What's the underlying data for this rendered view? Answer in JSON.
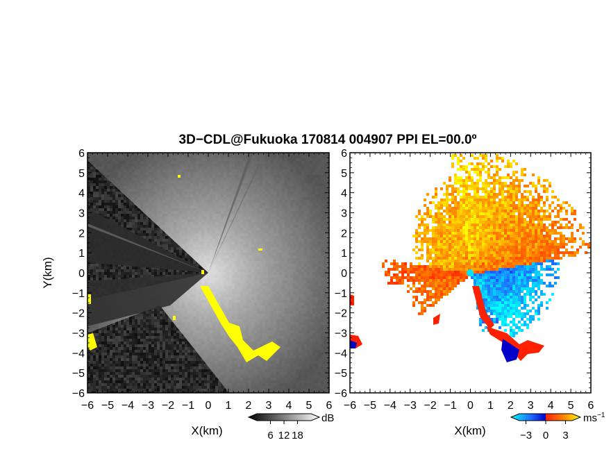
{
  "figure": {
    "title": "3D−CDL@Fukuoka 170814 004907 PPI EL=00.0º"
  },
  "chart_data": [
    {
      "type": "heatmap",
      "panel": "left",
      "field": "SNR (grayscale) with yellow flagged echoes",
      "xlabel": "X(km)",
      "ylabel": "Y(km)",
      "xlim": [
        -6,
        6
      ],
      "ylim": [
        -6,
        6
      ],
      "x_ticks": [
        "−6",
        "−5",
        "−4",
        "−3",
        "−2",
        "−1",
        "0",
        "1",
        "2",
        "3",
        "4",
        "5",
        "6"
      ],
      "y_ticks": [
        "−6",
        "−5",
        "−4",
        "−3",
        "−2",
        "−1",
        "0",
        "1",
        "2",
        "3",
        "4",
        "5",
        "6"
      ],
      "radar_center": [
        0,
        0
      ],
      "colorbar": {
        "unit": "dB",
        "ticks": [
          "6",
          "12",
          "18"
        ],
        "range": [
          0,
          24
        ],
        "colors": [
          "#000000",
          "#ffffff"
        ]
      },
      "flag_color": "#ffff00"
    },
    {
      "type": "heatmap",
      "panel": "right",
      "field": "Doppler velocity",
      "xlabel": "X(km)",
      "xlim": [
        -6,
        6
      ],
      "ylim": [
        -6,
        6
      ],
      "x_ticks": [
        "−6",
        "−5",
        "−4",
        "−3",
        "−2",
        "−1",
        "0",
        "1",
        "2",
        "3",
        "4",
        "5",
        "6"
      ],
      "y_ticks": [
        "−6",
        "−5",
        "−4",
        "−3",
        "−2",
        "−1",
        "0",
        "1",
        "2",
        "3",
        "4",
        "5",
        "6"
      ],
      "radar_center": [
        0,
        0
      ],
      "colorbar": {
        "unit": "ms",
        "unit_sup": "−1",
        "ticks": [
          "−3",
          "0",
          "3"
        ],
        "range": [
          -4,
          4
        ],
        "colors": [
          "#00ffff",
          "#1e64ff",
          "#0000c8",
          "#ff2000",
          "#ff8000",
          "#ffff00"
        ]
      }
    }
  ]
}
